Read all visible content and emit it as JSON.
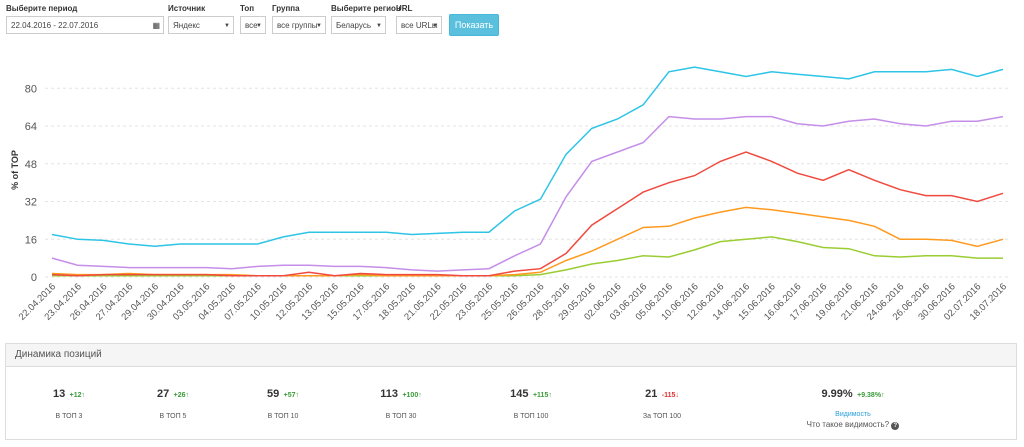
{
  "filters": [
    {
      "label": "Выберите период",
      "value": "22.04.2016 - 22.07.2016"
    },
    {
      "label": "Источник",
      "value": "Яндекс"
    },
    {
      "label": "Топ",
      "value": "все"
    },
    {
      "label": "Группа",
      "value": "все группы"
    },
    {
      "label": "Выберите регион",
      "value": "Беларусь"
    },
    {
      "label": "URL",
      "value": "все URLы"
    }
  ],
  "button": "Показать",
  "chart_data": {
    "type": "line",
    "ylabel": "% of TOP",
    "categories": [
      "22.04.2016",
      "23.04.2016",
      "26.04.2016",
      "27.04.2016",
      "29.04.2016",
      "30.04.2016",
      "03.05.2016",
      "04.05.2016",
      "07.05.2016",
      "10.05.2016",
      "12.05.2016",
      "13.05.2016",
      "15.05.2016",
      "17.05.2016",
      "18.05.2016",
      "21.05.2016",
      "22.05.2016",
      "23.05.2016",
      "25.05.2016",
      "26.05.2016",
      "28.05.2016",
      "29.05.2016",
      "02.06.2016",
      "03.06.2016",
      "05.06.2016",
      "10.06.2016",
      "12.06.2016",
      "14.06.2016",
      "15.06.2016",
      "16.06.2016",
      "17.06.2016",
      "19.06.2016",
      "21.06.2016",
      "24.06.2016",
      "26.06.2016",
      "30.06.2016",
      "02.07.2016",
      "18.07.2016"
    ],
    "series": [
      {
        "color": "#9acd32",
        "values": [
          0.5,
          0.5,
          0.5,
          0.5,
          0.5,
          0.5,
          0.5,
          0.5,
          0.5,
          0.5,
          0.5,
          0.5,
          0.5,
          0.5,
          0.5,
          0.5,
          0.5,
          0.5,
          0.5,
          1,
          3,
          5.5,
          7,
          9,
          8.5,
          11.5,
          15,
          16,
          17,
          15,
          12.5,
          12,
          9,
          8.5,
          9,
          9,
          8,
          8
        ]
      },
      {
        "color": "#ff9a1f",
        "values": [
          1.5,
          1,
          1,
          1.5,
          1,
          1,
          1,
          1,
          0.5,
          0.5,
          0.5,
          0.5,
          1,
          0.5,
          0.5,
          0.5,
          0.5,
          0.5,
          1,
          2,
          7,
          11,
          16,
          21,
          21.5,
          25,
          27.5,
          29.5,
          28.5,
          27,
          25.5,
          24,
          21.5,
          16,
          16,
          15.5,
          13,
          16
        ]
      },
      {
        "color": "#f04a3e",
        "values": [
          1,
          0.5,
          1,
          1,
          1,
          1,
          1,
          0.5,
          0.5,
          0.5,
          2,
          0.5,
          1.5,
          1,
          1,
          1,
          0.5,
          0.5,
          2.5,
          3.5,
          10,
          22,
          29,
          36,
          40,
          43,
          49,
          53,
          49,
          44,
          41,
          45.5,
          41,
          37,
          34.5,
          34.5,
          32,
          35.5
        ]
      },
      {
        "color": "#c58ee8",
        "values": [
          8,
          5,
          4.5,
          4,
          4,
          4,
          4,
          3.5,
          4.5,
          5,
          5,
          4.5,
          4.5,
          4,
          3,
          2.5,
          3,
          3.5,
          9,
          14,
          34,
          49,
          53,
          57,
          68,
          67,
          67,
          68,
          68,
          65,
          64,
          66,
          67,
          65,
          64,
          66,
          66,
          68
        ]
      },
      {
        "color": "#2ec4e6",
        "values": [
          18,
          16,
          15.5,
          14,
          13,
          14,
          14,
          14,
          14,
          17,
          19,
          19,
          19,
          19,
          18,
          18.5,
          19,
          19,
          28,
          33,
          52,
          63,
          67,
          73,
          87,
          89,
          87,
          85,
          87,
          86,
          85,
          84,
          87,
          87,
          87,
          88,
          85,
          88
        ]
      }
    ],
    "ylim": [
      0,
      92
    ],
    "yticks": [
      0,
      16,
      32,
      48,
      64,
      80
    ],
    "grid": true
  },
  "stats": {
    "title": "Динамика позиций",
    "items": [
      {
        "value": "13",
        "delta": "+12",
        "label": "В ТОП 3"
      },
      {
        "value": "27",
        "delta": "+26",
        "label": "В ТОП 5"
      },
      {
        "value": "59",
        "delta": "+57",
        "label": "В ТОП 10"
      },
      {
        "value": "113",
        "delta": "+100",
        "label": "В ТОП 30"
      },
      {
        "value": "145",
        "delta": "+115",
        "label": "В ТОП 100"
      },
      {
        "value": "21",
        "delta": "-115",
        "label": "За ТОП 100"
      },
      {
        "value": "9.99%",
        "delta": "+9.38%",
        "label": "Видимость",
        "link": "Что такое видимость?"
      }
    ]
  }
}
